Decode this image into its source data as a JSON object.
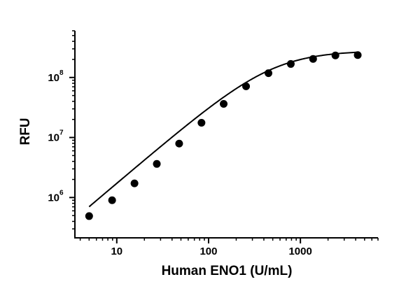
{
  "chart_data": {
    "type": "scatter",
    "title": "",
    "xlabel": "Human ENO1 (U/mL)",
    "ylabel": "RFU",
    "x_scale": "log",
    "y_scale": "log",
    "xlim": [
      3.5,
      7000
    ],
    "ylim": [
      250000,
      600000000
    ],
    "x_ticks": [
      {
        "value": 10,
        "label": "10"
      },
      {
        "value": 100,
        "label": "100"
      },
      {
        "value": 1000,
        "label": "1000"
      }
    ],
    "y_ticks": [
      {
        "value": 1000000,
        "base": "10",
        "exp": "6"
      },
      {
        "value": 10000000,
        "base": "10",
        "exp": "7"
      },
      {
        "value": 100000000,
        "base": "10",
        "exp": "8"
      }
    ],
    "grid": false,
    "legend": "none",
    "marker_color": "#000000",
    "line_color": "#000000",
    "series": [
      {
        "x": [
          5,
          8.9,
          15.6,
          27.3,
          47.8,
          83.7,
          146,
          256,
          449,
          786,
          1375,
          2406,
          4211
        ],
        "y": [
          490000,
          900000,
          1720000,
          3630000,
          7920000,
          17600000,
          36300000,
          71200000,
          118000000,
          168000000,
          204000000,
          233000000,
          236000000
        ]
      }
    ],
    "fit_curve": {
      "model": "4PL",
      "bottom": 0,
      "top": 280000000,
      "ec50": 500,
      "hill": 1.3
    }
  }
}
